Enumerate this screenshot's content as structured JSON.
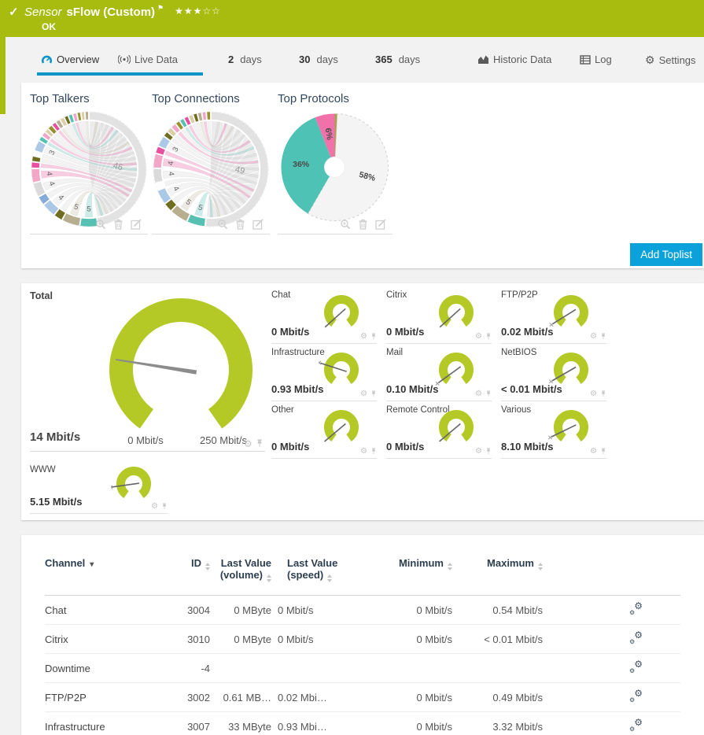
{
  "colors": {
    "header_green": "#a8bc10",
    "gauge_green": "#b4c926",
    "accent_blue": "#0ba1da",
    "tab_blue": "#1095c9",
    "heading_navy": "#33475b",
    "teal": "#4ec2b4",
    "pink": "#f172ab",
    "needle_gray": "#8c8c8c"
  },
  "header": {
    "check": "✓",
    "kind": "Sensor",
    "title": "sFlow (Custom)",
    "flag": "⚑",
    "stars": "★★★☆☆",
    "status": "OK"
  },
  "tabs": {
    "items": [
      {
        "label": "Overview",
        "icon": "gauge-icon",
        "active": true
      },
      {
        "label": "Live Data",
        "icon": "live-icon"
      },
      {
        "num": "2",
        "label": "days"
      },
      {
        "num": "30",
        "label": "days"
      },
      {
        "num": "365",
        "label": "days"
      },
      {
        "label": "Historic Data",
        "icon": "histogram-icon"
      },
      {
        "label": "Log",
        "icon": "log-icon"
      },
      {
        "label": "Settings",
        "icon": "gear-icon"
      }
    ]
  },
  "toplists": {
    "add_button": "Add Toplist",
    "panels": [
      {
        "title": "Top Talkers"
      },
      {
        "title": "Top Connections"
      },
      {
        "title": "Top Protocols"
      }
    ]
  },
  "gauges": {
    "total": {
      "name": "Total",
      "value": "14 Mbit/s",
      "min_label": "0 Mbit/s",
      "max_label": "250 Mbit/s"
    },
    "channels": [
      {
        "name": "Chat",
        "value": "0 Mbit/s"
      },
      {
        "name": "Citrix",
        "value": "0 Mbit/s"
      },
      {
        "name": "FTP/P2P",
        "value": "0.02 Mbit/s"
      },
      {
        "name": "Infrastructure",
        "value": "0.93 Mbit/s"
      },
      {
        "name": "Mail",
        "value": "0.10 Mbit/s"
      },
      {
        "name": "NetBIOS",
        "value": "< 0.01 Mbit/s"
      },
      {
        "name": "Other",
        "value": "0 Mbit/s"
      },
      {
        "name": "Remote Control",
        "value": "0 Mbit/s"
      },
      {
        "name": "Various",
        "value": "8.10 Mbit/s"
      }
    ],
    "www": {
      "name": "WWW",
      "value": "5.15 Mbit/s"
    }
  },
  "table": {
    "headers": [
      "Channel",
      "ID",
      "Last Value (volume)",
      "Last Value (speed)",
      "Minimum",
      "Maximum"
    ],
    "rows": [
      [
        "Chat",
        "3004",
        "0 MByte",
        "0 Mbit/s",
        "0 Mbit/s",
        "0.54 Mbit/s"
      ],
      [
        "Citrix",
        "3010",
        "0 MByte",
        "0 Mbit/s",
        "0 Mbit/s",
        "< 0.01 Mbit/s"
      ],
      [
        "Downtime",
        "-4",
        "",
        "",
        "",
        ""
      ],
      [
        "FTP/P2P",
        "3002",
        "0.61 MB…",
        "0.02 Mbi…",
        "0 Mbit/s",
        "0.49 Mbit/s"
      ],
      [
        "Infrastructure",
        "3007",
        "33 MByte",
        "0.93 Mbi…",
        "0 Mbit/s",
        "3.32 Mbit/s"
      ]
    ]
  },
  "chart_data": [
    {
      "type": "chord",
      "title": "Top Talkers",
      "center_label": "46",
      "segments": [
        {
          "v": 46,
          "c": "#e2e2e2",
          "label": "46",
          "big": true
        },
        {
          "v": 5,
          "c": "#56c0b3",
          "label": "5"
        },
        {
          "v": 5,
          "c": "#b6ae8f",
          "label": "5"
        },
        {
          "v": 2.5,
          "c": "#6f6d20"
        },
        {
          "v": 4,
          "c": "#abc8e6",
          "label": "4"
        },
        {
          "v": 2.5,
          "c": "#83acd8"
        },
        {
          "v": 4,
          "c": "#dadada",
          "label": "4"
        },
        {
          "v": 4,
          "c": "#f2a6c8",
          "label": "4"
        },
        {
          "v": 1.8,
          "c": "#e84f9e"
        },
        {
          "v": 1.6,
          "c": "#6f6d20"
        },
        {
          "v": 1.4,
          "c": "#fdfdfd"
        },
        {
          "v": 3,
          "c": "#abc8e6",
          "label": "3"
        },
        {
          "v": 1.4,
          "c": "#56c0b3"
        },
        {
          "v": 1.4,
          "c": "#f2a6c8"
        },
        {
          "v": 1.2,
          "c": "#dbcda6"
        },
        {
          "v": 1.4,
          "c": "#96912d"
        },
        {
          "v": 1.3,
          "c": "#e84f9e"
        },
        {
          "v": 1.3,
          "c": "#b6ae8f"
        },
        {
          "v": 1.3,
          "c": "#dbcda6"
        },
        {
          "v": 1.2,
          "c": "#6f6d20"
        },
        {
          "v": 1.2,
          "c": "#56c0b3"
        },
        {
          "v": 1.2,
          "c": "#f2a6c8"
        },
        {
          "v": 1.1,
          "c": "#96912d"
        },
        {
          "v": 1.1,
          "c": "#dbcda6"
        },
        {
          "v": 1.1,
          "c": "#b6ae8f"
        }
      ]
    },
    {
      "type": "chord",
      "title": "Top Connections",
      "center_label": "49",
      "segments": [
        {
          "v": 49,
          "c": "#e2e2e2",
          "label": "49",
          "big": true
        },
        {
          "v": 5,
          "c": "#56c0b3",
          "label": "5"
        },
        {
          "v": 5,
          "c": "#b6ae8f",
          "label": "5"
        },
        {
          "v": 2.5,
          "c": "#6f6d20"
        },
        {
          "v": 4,
          "c": "#abc8e6",
          "label": "4"
        },
        {
          "v": 2,
          "c": "#fdfdfd"
        },
        {
          "v": 4,
          "c": "#dadada",
          "label": "4"
        },
        {
          "v": 4,
          "c": "#f2a6c8",
          "label": "4"
        },
        {
          "v": 2,
          "c": "#e84f9e"
        },
        {
          "v": 3,
          "c": "#abc8e6",
          "label": "3"
        },
        {
          "v": 1.5,
          "c": "#6f6d20"
        },
        {
          "v": 1.5,
          "c": "#dbcda6"
        },
        {
          "v": 1.5,
          "c": "#f2a6c8"
        },
        {
          "v": 1.3,
          "c": "#96912d"
        },
        {
          "v": 1.3,
          "c": "#56c0b3"
        },
        {
          "v": 1.3,
          "c": "#e84f9e"
        },
        {
          "v": 1.3,
          "c": "#dbcda6"
        },
        {
          "v": 1.2,
          "c": "#6f6d20"
        },
        {
          "v": 1.2,
          "c": "#b6ae8f"
        },
        {
          "v": 1.2,
          "c": "#f2a6c8"
        },
        {
          "v": 1.2,
          "c": "#96912d"
        }
      ]
    },
    {
      "type": "donut",
      "title": "Top Protocols",
      "slices": [
        {
          "v": 0.8,
          "c": "#aaa04a",
          "label": ""
        },
        {
          "v": 58,
          "c": "#f4f4f4",
          "label": "58%",
          "rot": 15,
          "dashed": true
        },
        {
          "v": 36,
          "c": "#4ec2b4",
          "label": "36%",
          "rot": 0
        },
        {
          "v": 6,
          "c": "#f172ab",
          "label": "6%",
          "rot": 80
        }
      ]
    },
    {
      "type": "gauges",
      "unit": "Mbit/s",
      "total": {
        "name": "Total",
        "value": 14,
        "min": 0,
        "max": 250,
        "needle_deg": 189
      },
      "channels": [
        {
          "name": "Chat",
          "needle_deg": 138,
          "tipmark": false
        },
        {
          "name": "Citrix",
          "needle_deg": 138,
          "tipmark": false
        },
        {
          "name": "FTP/P2P",
          "needle_deg": 148,
          "tipmark": true
        },
        {
          "name": "Infrastructure",
          "needle_deg": 198,
          "tipmark": true
        },
        {
          "name": "Mail",
          "needle_deg": 144,
          "tipmark": true
        },
        {
          "name": "NetBIOS",
          "needle_deg": 150,
          "tipmark": true
        },
        {
          "name": "Other",
          "needle_deg": 140,
          "tipmark": false
        },
        {
          "name": "Remote Control",
          "needle_deg": 140,
          "tipmark": false
        },
        {
          "name": "Various",
          "needle_deg": 154,
          "tipmark": true
        }
      ],
      "www": {
        "name": "WWW",
        "needle_deg": 172,
        "tipmark": true
      }
    }
  ]
}
